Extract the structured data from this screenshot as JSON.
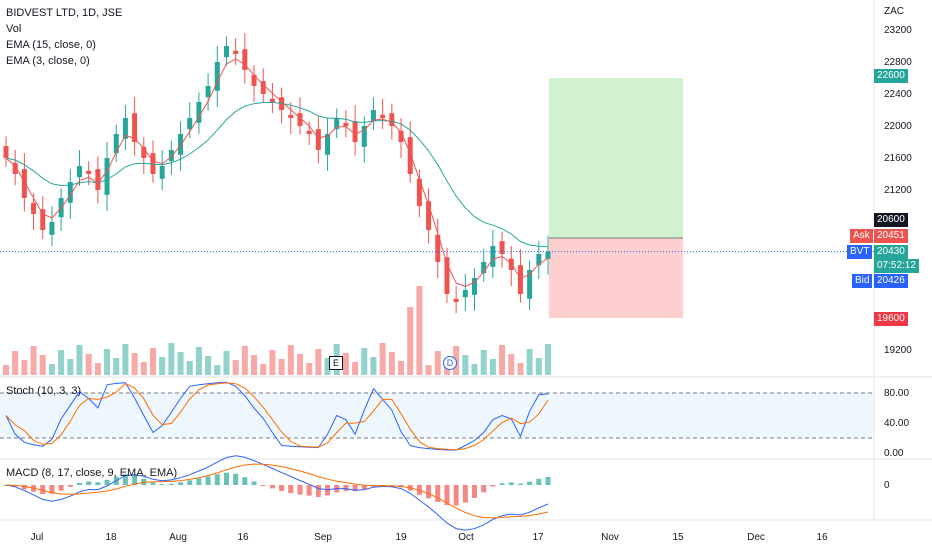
{
  "legend": {
    "symbol": "BIDVEST LTD, 1D, JSE",
    "vol": "Vol",
    "ema15": "EMA (15, close, 0)",
    "ema3": "EMA (3, close, 0)",
    "stoch": "Stoch (10, 3, 3)",
    "macd": "MACD (8, 17, close, 9, EMA, EMA)"
  },
  "currency": "ZAC",
  "price_axis": {
    "ticks": [
      "23200",
      "22800",
      "22400",
      "22000",
      "21600",
      "21200",
      "19200"
    ],
    "ask_label": "Ask",
    "ask_value": "20451",
    "last_label": "BVT",
    "last_value": "20430",
    "countdown": "07:52:12",
    "bid_label": "Bid",
    "bid_value": "20426",
    "target": "22600",
    "entry": "20600",
    "stop": "19600"
  },
  "stoch_axis": {
    "ticks": [
      "80.00",
      "40.00",
      "0.00"
    ]
  },
  "macd_axis": {
    "ticks": [
      "0"
    ]
  },
  "x_axis": {
    "labels": [
      "Jul",
      "18",
      "Aug",
      "16",
      "Sep",
      "19",
      "Oct",
      "17",
      "Nov",
      "15",
      "Dec",
      "16"
    ]
  },
  "markers": {
    "earnings": "E",
    "dividend": "D"
  },
  "colors": {
    "up": "#26a69a",
    "down": "#ef5350",
    "ema15": "#26a69a",
    "ema3": "#ef5350",
    "stoch_k": "#2962ff",
    "stoch_d": "#ff6d00",
    "macd": "#2962ff",
    "signal": "#ff6d00",
    "target_zone": "#d1f2cf",
    "stop_zone": "#fdcfcf"
  },
  "chart_data": {
    "type": "candlestick",
    "approx_closes": [
      21600,
      21400,
      21100,
      20900,
      20700,
      20800,
      21100,
      21300,
      21500,
      21400,
      21200,
      21600,
      21900,
      22100,
      21800,
      21600,
      21400,
      21500,
      21700,
      21900,
      22100,
      22300,
      22500,
      22800,
      23000,
      22900,
      22700,
      22500,
      22400,
      22300,
      22200,
      22100,
      22000,
      21900,
      21700,
      21900,
      22100,
      22000,
      21800,
      22000,
      22200,
      22100,
      22000,
      21800,
      21400,
      21000,
      20700,
      20300,
      19900,
      19800,
      19950,
      20100,
      20300,
      20500,
      20400,
      20200,
      19900,
      20200,
      20400,
      20430
    ],
    "trade_setup": {
      "target": 22600,
      "entry": 20600,
      "stop": 19600
    },
    "stoch_range": [
      0,
      100
    ],
    "stoch_levels": [
      80,
      20
    ]
  }
}
